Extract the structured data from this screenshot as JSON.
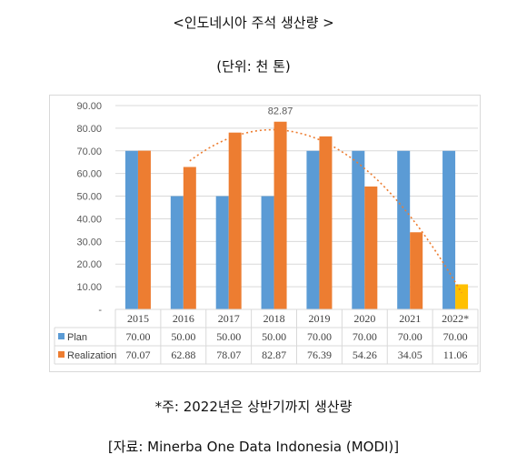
{
  "title": "<인도네시아 주석 생산량 >",
  "subtitle": "(단위: 천 톤)",
  "footnote": "*주: 2022년은 상반기까지 생산량",
  "source": "[자료:  Minerba One Data Indonesia (MODI)]",
  "colors": {
    "plan": "#5B9BD5",
    "realization": "#ED7D31",
    "realization_2022": "#FFC000",
    "trendline": "#ED7D31",
    "grid": "#D9D9D9"
  },
  "chart_data": {
    "type": "bar",
    "categories": [
      "2015",
      "2016",
      "2017",
      "2018",
      "2019",
      "2020",
      "2021",
      "2022*"
    ],
    "series": [
      {
        "name": "Plan",
        "values": [
          70.0,
          50.0,
          50.0,
          50.0,
          70.0,
          70.0,
          70.0,
          70.0
        ],
        "table_labels": [
          "70.00",
          "50.00",
          "50.00",
          "50.00",
          "70.00",
          "70.00",
          "70.00",
          "70.00"
        ]
      },
      {
        "name": "Realization",
        "values": [
          70.07,
          62.88,
          78.07,
          82.87,
          76.39,
          54.26,
          34.05,
          11.06
        ],
        "table_labels": [
          "70.07",
          "62.88",
          "78.07",
          "82.87",
          "76.39",
          "54.26",
          "34.05",
          "11.06"
        ]
      }
    ],
    "y_ticks": [
      "-",
      "10.00",
      "20.00",
      "30.00",
      "40.00",
      "50.00",
      "60.00",
      "70.00",
      "80.00",
      "90.00"
    ],
    "ylim": [
      0,
      90
    ],
    "annotation": "82.87",
    "trendline": "dotted polynomial trend over Realization (2016–2022)",
    "grid": true,
    "legend": "data table below chart"
  }
}
